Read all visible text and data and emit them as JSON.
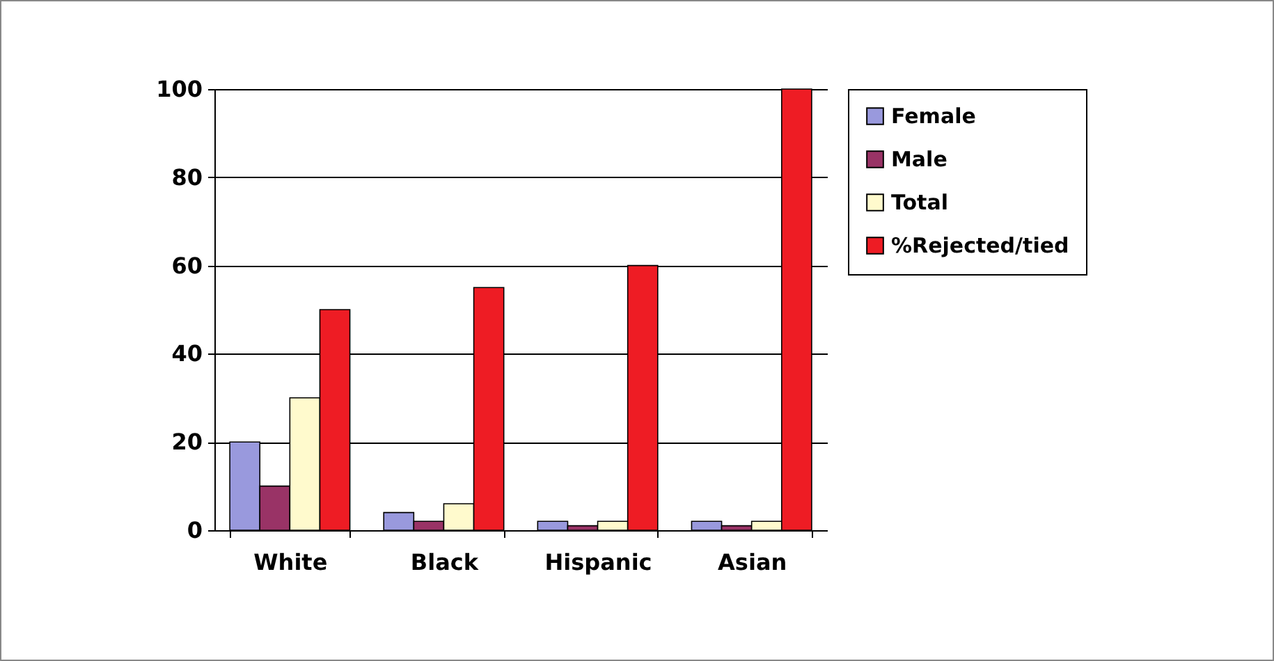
{
  "chart_data": {
    "type": "bar",
    "categories": [
      "White",
      "Black",
      "Hispanic",
      "Asian"
    ],
    "series": [
      {
        "name": "Female",
        "color": "#9999dd",
        "values": [
          20,
          4,
          2,
          2
        ]
      },
      {
        "name": "Male",
        "color": "#993366",
        "values": [
          10,
          2,
          1,
          1
        ]
      },
      {
        "name": "Total",
        "color": "#fffacd",
        "values": [
          30,
          6,
          2,
          2
        ]
      },
      {
        "name": "%Rejected/tied",
        "color": "#ee1c24",
        "values": [
          50,
          55,
          60,
          100
        ]
      }
    ],
    "ylim": [
      0,
      100
    ],
    "yticks": [
      0,
      20,
      40,
      60,
      80,
      100
    ],
    "grid": "y",
    "legend": "right"
  }
}
